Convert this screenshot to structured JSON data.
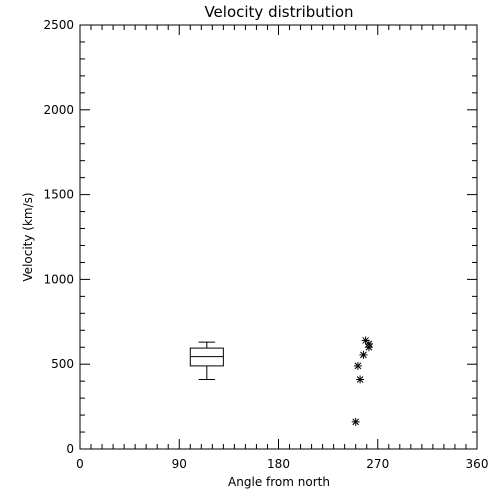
{
  "chart_data": {
    "type": "scatter",
    "title": "Velocity distribution",
    "xlabel": "Angle from north",
    "ylabel": "Velocity (km/s)",
    "xlim": [
      0,
      360
    ],
    "ylim": [
      0,
      2500
    ],
    "x_ticks": [
      0,
      90,
      180,
      270,
      360
    ],
    "x_tick_labels": [
      "0",
      "90",
      "180",
      "270",
      "360"
    ],
    "y_ticks": [
      0,
      500,
      1000,
      1500,
      2000,
      2500
    ],
    "y_tick_labels": [
      "0",
      "500",
      "1000",
      "1500",
      "2000",
      "2500"
    ],
    "x_minor_step": 10,
    "y_minor_step": 100,
    "grid": false,
    "legend": "none",
    "boxplot": {
      "x": 115,
      "half_width": 15,
      "whisker_low": 410,
      "q1": 490,
      "median": 545,
      "q3": 595,
      "whisker_high": 630
    },
    "points": [
      {
        "x": 250,
        "y": 160
      },
      {
        "x": 254,
        "y": 410
      },
      {
        "x": 252,
        "y": 490
      },
      {
        "x": 257,
        "y": 555
      },
      {
        "x": 262,
        "y": 600
      },
      {
        "x": 259,
        "y": 640
      },
      {
        "x": 262,
        "y": 620
      }
    ],
    "marker": "asterisk"
  }
}
